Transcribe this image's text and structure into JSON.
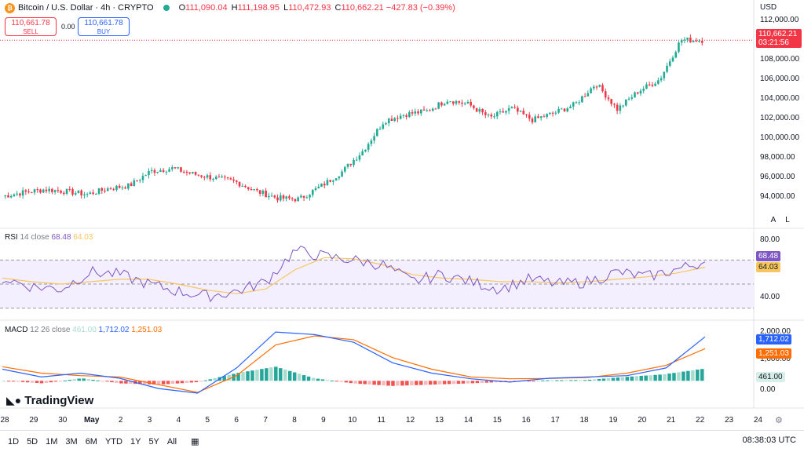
{
  "header": {
    "symbol": "Bitcoin / U.S. Dollar · 4h · CRYPTO",
    "open_label": "O",
    "open": "111,090.04",
    "high_label": "H",
    "high": "111,198.95",
    "low_label": "L",
    "low": "110,472.93",
    "close_label": "C",
    "close": "110,662.21",
    "change": "−427.83 (−0.39%)"
  },
  "trade": {
    "sell_price": "110,661.78",
    "sell_label": "SELL",
    "spread": "0.00",
    "buy_price": "110,661.78",
    "buy_label": "BUY"
  },
  "price_axis": {
    "currency": "USD",
    "ticks": [
      "112,000.00",
      "110,000.00",
      "108,000.00",
      "106,000.00",
      "104,000.00",
      "102,000.00",
      "100,000.00",
      "98,000.00",
      "96,000.00",
      "94,000.00"
    ],
    "last_price": "110,662.21",
    "countdown": "03:21:56"
  },
  "scale_buttons": {
    "auto": "A",
    "log": "L"
  },
  "rsi": {
    "title": "RSI",
    "params": "14 close",
    "value": "68.48",
    "ma_value": "64.03",
    "ticks": [
      "80.00",
      "40.00"
    ]
  },
  "macd": {
    "title": "MACD",
    "params": "12 26 close",
    "hist": "461.00",
    "macd": "1,712.02",
    "signal": "1,251.03",
    "ticks": [
      "2,000.00",
      "1,000.00",
      "0.00"
    ]
  },
  "time_axis": [
    "28",
    "29",
    "30",
    "May",
    "2",
    "3",
    "4",
    "5",
    "6",
    "7",
    "8",
    "9",
    "10",
    "11",
    "12",
    "13",
    "14",
    "15",
    "16",
    "17",
    "18",
    "19",
    "20",
    "21",
    "22",
    "23",
    "24"
  ],
  "brand": "TradingView",
  "timeframes": [
    "1D",
    "5D",
    "1M",
    "3M",
    "6M",
    "YTD",
    "1Y",
    "5Y",
    "All"
  ],
  "clock": "08:38:03 UTC",
  "colors": {
    "up": "#22ab94",
    "down": "#f23645",
    "rsi": "#7e57c2",
    "rsi_ma": "#f7c65e",
    "macd": "#2962ff",
    "signal": "#ff6d00",
    "bg_rsi": "#f3efff"
  },
  "chart_data": {
    "type": "candlestick",
    "title": "Bitcoin / U.S. Dollar · 4h · CRYPTO",
    "y_range": [
      92800,
      113200
    ],
    "x_categories": [
      "28",
      "29",
      "30",
      "May",
      "2",
      "3",
      "4",
      "5",
      "6",
      "7",
      "8",
      "9",
      "10",
      "11",
      "12",
      "13",
      "14",
      "15",
      "16",
      "17",
      "18",
      "19",
      "20",
      "21",
      "22"
    ],
    "candles_close_approx": [
      94500,
      94900,
      95200,
      95000,
      94700,
      95300,
      95600,
      97100,
      97400,
      96800,
      96400,
      96000,
      95000,
      94300,
      94200,
      95500,
      97000,
      99200,
      102300,
      103000,
      103300,
      104500,
      104000,
      102600,
      103600,
      102400,
      103100,
      104000,
      106200,
      103500,
      105400,
      106600,
      110700,
      110662
    ],
    "rsi": {
      "series": [
        {
          "name": "RSI",
          "values": [
            55,
            48,
            46,
            60,
            58,
            50,
            44,
            40,
            44,
            52,
            78,
            73,
            70,
            66,
            52,
            58,
            52,
            46,
            54,
            50,
            52,
            60,
            56,
            62,
            68.48
          ]
        },
        {
          "name": "RSI MA",
          "values": [
            55,
            52,
            50,
            52,
            54,
            54,
            50,
            45,
            42,
            46,
            62,
            72,
            71,
            66,
            58,
            55,
            54,
            52,
            52,
            51,
            52,
            54,
            56,
            59,
            64.03
          ]
        }
      ],
      "ylim": [
        22,
        95
      ]
    },
    "macd": {
      "series": [
        {
          "name": "MACD",
          "values": [
            450,
            150,
            300,
            100,
            -300,
            -480,
            500,
            1900,
            1800,
            1500,
            700,
            300,
            80,
            -50,
            100,
            150,
            200,
            500,
            1712.02
          ]
        },
        {
          "name": "Signal",
          "values": [
            550,
            300,
            200,
            150,
            -150,
            -450,
            200,
            1400,
            1750,
            1600,
            900,
            450,
            150,
            80,
            90,
            130,
            300,
            600,
            1251.03
          ]
        },
        {
          "name": "Histogram",
          "values": [
            0,
            -100,
            100,
            -100,
            -150,
            -50,
            300,
            550,
            100,
            -100,
            -200,
            -150,
            -100,
            -40,
            20,
            30,
            150,
            250,
            461
          ]
        }
      ],
      "ylim": [
        -1000,
        2300
      ]
    }
  }
}
